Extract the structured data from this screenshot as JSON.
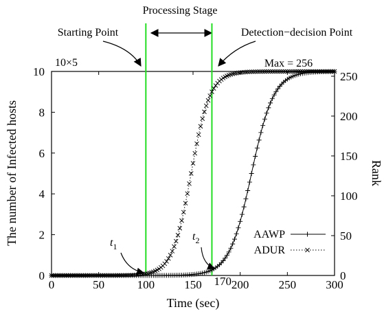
{
  "chart_data": {
    "type": "line",
    "xlabel": "Time (sec)",
    "ylabel_left": "The number of Infected hosts",
    "ylabel_right": "Rank",
    "y_multiplier": "10×5",
    "xlim": [
      0,
      300
    ],
    "ylim_left": [
      0,
      10
    ],
    "ylim_right": [
      0,
      256
    ],
    "x_ticks": [
      "0",
      "50",
      "100",
      "150",
      "170",
      "200",
      "250",
      "300"
    ],
    "y_ticks_left": [
      "0",
      "2",
      "4",
      "6",
      "8",
      "10"
    ],
    "y_ticks_right": [
      "0",
      "50",
      "100",
      "150",
      "200",
      "250"
    ],
    "max_label": "Max = 256",
    "grid": false,
    "legend_position": "bottom-right",
    "series": [
      {
        "name": "AAWP",
        "marker": "+",
        "line_style": "solid",
        "logistic": {
          "max": 10,
          "midpoint": 212,
          "rate": 0.085,
          "start": 0,
          "end": 300,
          "step": 2
        }
      },
      {
        "name": "ADUR",
        "marker": "x",
        "line_style": "dotted",
        "logistic": {
          "max": 10,
          "midpoint": 148,
          "rate": 0.1,
          "start": 0,
          "end": 300,
          "step": 2
        }
      }
    ],
    "vertical_lines": [
      100,
      170
    ],
    "annotations": {
      "processing_stage": "Processing Stage",
      "starting_point": "Starting Point",
      "detection_point": "Detection−decision Point",
      "t1_base": "t",
      "t1_sub": "1",
      "t2_base": "t",
      "t2_sub": "2"
    }
  }
}
